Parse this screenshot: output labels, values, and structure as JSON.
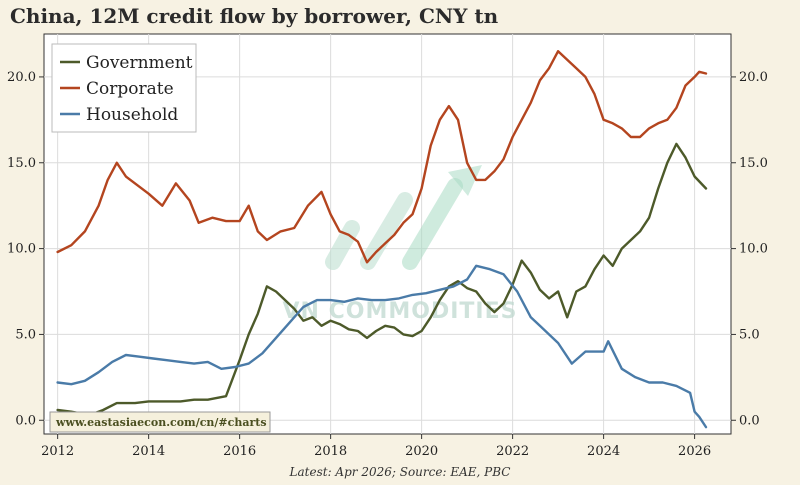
{
  "title": "China, 12M credit flow by borrower, CNY tn",
  "footnote": "Latest: Apr 2026; Source: EAE, PBC",
  "source_box": "www.eastasiaecon.com/cn/#charts",
  "watermark": "VN COMMODITIES",
  "colors": {
    "background": "#f7f2e3",
    "plot_background": "#ffffff",
    "Government": "#4d5a2a",
    "Corporate": "#b4451f",
    "Household": "#4a7ba8",
    "grid": "#dcdcdc",
    "watermark": "#9ed6bf"
  },
  "chart_data": {
    "type": "line",
    "title": "China, 12M credit flow by borrower, CNY tn",
    "xlabel": "",
    "ylabel": "",
    "xlim": [
      2011.7,
      2026.8
    ],
    "ylim": [
      -0.8,
      22.5
    ],
    "xticks": [
      2012,
      2014,
      2016,
      2018,
      2020,
      2022,
      2024,
      2026
    ],
    "yticks": [
      0.0,
      5.0,
      10.0,
      15.0,
      20.0
    ],
    "ytick_labels": [
      "0.0",
      "5.0",
      "10.0",
      "15.0",
      "20.0"
    ],
    "grid": true,
    "legend_position": "top-left",
    "secondary_y_axis": true,
    "series": [
      {
        "name": "Government",
        "x": [
          2012.0,
          2012.3,
          2012.7,
          2013.0,
          2013.3,
          2013.7,
          2014.0,
          2014.3,
          2014.7,
          2015.0,
          2015.3,
          2015.7,
          2016.0,
          2016.2,
          2016.4,
          2016.6,
          2016.8,
          2017.0,
          2017.2,
          2017.4,
          2017.6,
          2017.8,
          2018.0,
          2018.2,
          2018.4,
          2018.6,
          2018.8,
          2019.0,
          2019.2,
          2019.4,
          2019.6,
          2019.8,
          2020.0,
          2020.2,
          2020.4,
          2020.6,
          2020.8,
          2021.0,
          2021.2,
          2021.4,
          2021.6,
          2021.8,
          2022.0,
          2022.2,
          2022.4,
          2022.6,
          2022.8,
          2023.0,
          2023.2,
          2023.4,
          2023.6,
          2023.8,
          2024.0,
          2024.2,
          2024.4,
          2024.6,
          2024.8,
          2025.0,
          2025.2,
          2025.4,
          2025.6,
          2025.8,
          2026.0,
          2026.25
        ],
        "values": [
          0.6,
          0.5,
          0.3,
          0.6,
          1.0,
          1.0,
          1.1,
          1.1,
          1.1,
          1.2,
          1.2,
          1.4,
          3.5,
          5.0,
          6.2,
          7.8,
          7.5,
          7.0,
          6.5,
          5.8,
          6.0,
          5.5,
          5.8,
          5.6,
          5.3,
          5.2,
          4.8,
          5.2,
          5.5,
          5.4,
          5.0,
          4.9,
          5.2,
          6.0,
          7.0,
          7.8,
          8.1,
          7.7,
          7.5,
          6.8,
          6.3,
          6.8,
          7.9,
          9.3,
          8.6,
          7.6,
          7.1,
          7.5,
          6.0,
          7.5,
          7.8,
          8.8,
          9.6,
          9.0,
          10.0,
          10.5,
          11.0,
          11.8,
          13.5,
          15.0,
          16.1,
          15.3,
          14.2,
          13.5
        ]
      },
      {
        "name": "Corporate",
        "x": [
          2012.0,
          2012.3,
          2012.6,
          2012.9,
          2013.1,
          2013.3,
          2013.5,
          2013.8,
          2014.0,
          2014.3,
          2014.6,
          2014.9,
          2015.1,
          2015.4,
          2015.7,
          2016.0,
          2016.2,
          2016.4,
          2016.6,
          2016.9,
          2017.2,
          2017.5,
          2017.8,
          2018.0,
          2018.2,
          2018.4,
          2018.6,
          2018.8,
          2019.0,
          2019.2,
          2019.4,
          2019.6,
          2019.8,
          2020.0,
          2020.2,
          2020.4,
          2020.6,
          2020.8,
          2021.0,
          2021.2,
          2021.4,
          2021.6,
          2021.8,
          2022.0,
          2022.2,
          2022.4,
          2022.6,
          2022.8,
          2023.0,
          2023.2,
          2023.4,
          2023.6,
          2023.8,
          2024.0,
          2024.2,
          2024.4,
          2024.6,
          2024.8,
          2025.0,
          2025.2,
          2025.4,
          2025.6,
          2025.8,
          2026.0,
          2026.1,
          2026.25
        ],
        "values": [
          9.8,
          10.2,
          11.0,
          12.5,
          14.0,
          15.0,
          14.2,
          13.6,
          13.2,
          12.5,
          13.8,
          12.8,
          11.5,
          11.8,
          11.6,
          11.6,
          12.5,
          11.0,
          10.5,
          11.0,
          11.2,
          12.5,
          13.3,
          12.0,
          11.0,
          10.8,
          10.4,
          9.2,
          9.8,
          10.3,
          10.8,
          11.5,
          12.0,
          13.5,
          16.0,
          17.5,
          18.3,
          17.5,
          15.0,
          14.0,
          14.0,
          14.5,
          15.2,
          16.5,
          17.5,
          18.5,
          19.8,
          20.5,
          21.5,
          21.0,
          20.5,
          20.0,
          19.0,
          17.5,
          17.3,
          17.0,
          16.5,
          16.5,
          17.0,
          17.3,
          17.5,
          18.2,
          19.5,
          20.0,
          20.3,
          20.2
        ]
      },
      {
        "name": "Household",
        "x": [
          2012.0,
          2012.3,
          2012.6,
          2012.9,
          2013.2,
          2013.5,
          2013.8,
          2014.1,
          2014.4,
          2014.7,
          2015.0,
          2015.3,
          2015.6,
          2015.9,
          2016.2,
          2016.5,
          2016.8,
          2017.1,
          2017.4,
          2017.7,
          2018.0,
          2018.3,
          2018.6,
          2018.9,
          2019.2,
          2019.5,
          2019.8,
          2020.1,
          2020.4,
          2020.7,
          2021.0,
          2021.2,
          2021.5,
          2021.8,
          2022.1,
          2022.4,
          2022.6,
          2022.8,
          2023.0,
          2023.3,
          2023.6,
          2023.9,
          2024.0,
          2024.1,
          2024.4,
          2024.7,
          2025.0,
          2025.3,
          2025.6,
          2025.9,
          2026.0,
          2026.1,
          2026.25
        ],
        "values": [
          2.2,
          2.1,
          2.3,
          2.8,
          3.4,
          3.8,
          3.7,
          3.6,
          3.5,
          3.4,
          3.3,
          3.4,
          3.0,
          3.1,
          3.3,
          3.9,
          4.8,
          5.7,
          6.6,
          7.0,
          7.0,
          6.9,
          7.1,
          7.0,
          7.0,
          7.1,
          7.3,
          7.4,
          7.6,
          7.8,
          8.2,
          9.0,
          8.8,
          8.5,
          7.5,
          6.0,
          5.5,
          5.0,
          4.5,
          3.3,
          4.0,
          4.0,
          4.0,
          4.6,
          3.0,
          2.5,
          2.2,
          2.2,
          2.0,
          1.6,
          0.5,
          0.2,
          -0.4
        ]
      }
    ]
  }
}
